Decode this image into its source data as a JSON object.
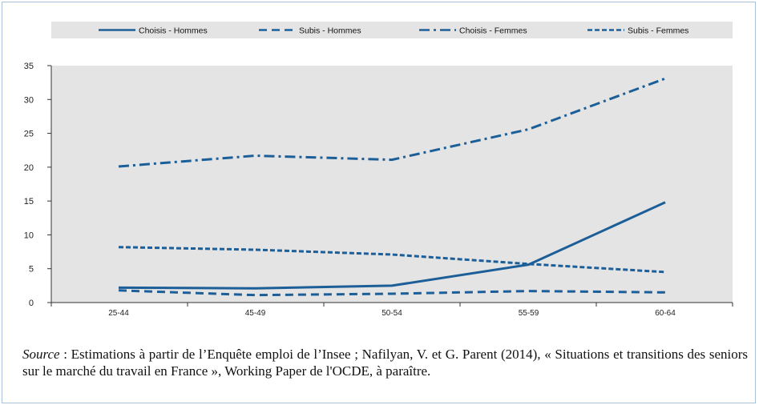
{
  "chart_data": {
    "type": "line",
    "categories": [
      "25-44",
      "45-49",
      "50-54",
      "55-59",
      "60-64"
    ],
    "series": [
      {
        "name": "Choisis - Hommes",
        "values": [
          2.2,
          2.1,
          2.5,
          5.6,
          14.8
        ],
        "color": "#1c5f98",
        "dash": "solid"
      },
      {
        "name": "Subis - Hommes",
        "values": [
          1.8,
          1.1,
          1.3,
          1.7,
          1.5
        ],
        "color": "#1c5f98",
        "dash": "long-dash"
      },
      {
        "name": "Choisis - Femmes",
        "values": [
          20.1,
          21.7,
          21.1,
          25.6,
          33.1
        ],
        "color": "#1c5f98",
        "dash": "dash-dot"
      },
      {
        "name": "Subis - Femmes",
        "values": [
          8.2,
          7.8,
          7.1,
          5.7,
          4.5
        ],
        "color": "#1c5f98",
        "dash": "short-dash"
      }
    ],
    "ylim": [
      0,
      35
    ],
    "yticks": [
      "0",
      "5",
      "10",
      "15",
      "20",
      "25",
      "30",
      "35"
    ],
    "grid": false,
    "legend_position": "top",
    "background": "#e4e4e4",
    "xlabel": "",
    "ylabel": ""
  },
  "note": {
    "source_label": "Source",
    "source_text": " : Estimations à partir de l’Enquête emploi de l’Insee ; Nafilyan, V. et G. Parent (2014), « Situations et transitions des seniors sur le marché du travail en France », Working Paper de l'OCDE, à paraître."
  }
}
